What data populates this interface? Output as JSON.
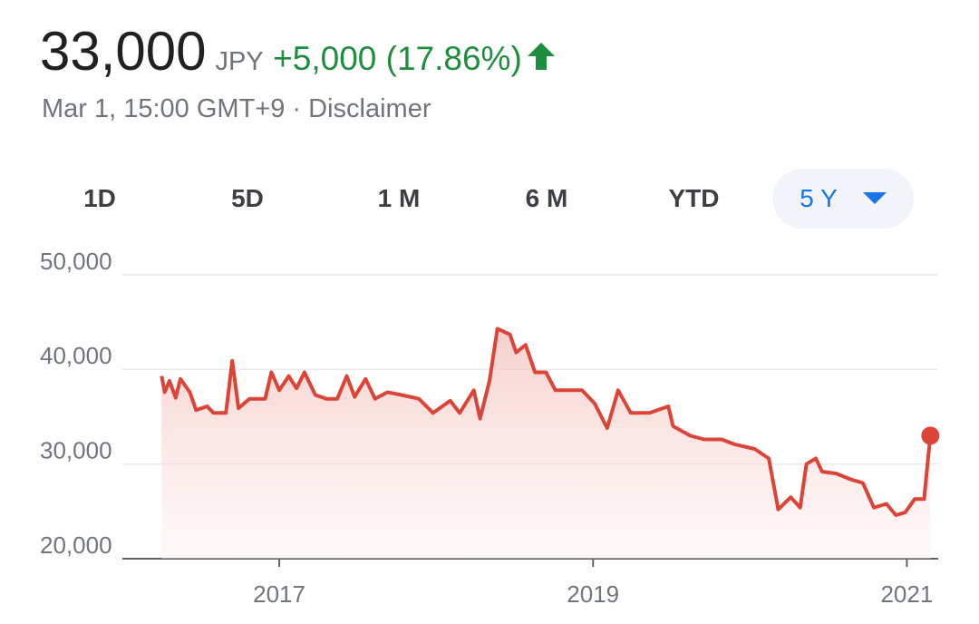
{
  "header": {
    "price": "33,000",
    "currency": "JPY",
    "change": "+5,000 (17.86%)",
    "timestamp": "Mar 1, 15:00 GMT+9 ·",
    "disclaimer": "Disclaimer"
  },
  "tabs": [
    "1D",
    "5D",
    "1 M",
    "6 M",
    "YTD",
    "5 Y"
  ],
  "selected_tab": 5,
  "chart_data": {
    "type": "line",
    "x": [
      2016.25,
      2016.27,
      2016.3,
      2016.34,
      2016.37,
      2016.43,
      2016.47,
      2016.54,
      2016.58,
      2016.66,
      2016.7,
      2016.74,
      2016.81,
      2016.91,
      2016.95,
      2017.0,
      2017.06,
      2017.11,
      2017.16,
      2017.23,
      2017.3,
      2017.37,
      2017.43,
      2017.48,
      2017.55,
      2017.61,
      2017.69,
      2017.78,
      2017.89,
      2017.98,
      2018.09,
      2018.15,
      2018.24,
      2018.28,
      2018.34,
      2018.39,
      2018.47,
      2018.51,
      2018.57,
      2018.63,
      2018.7,
      2018.76,
      2018.84,
      2018.93,
      2019.01,
      2019.09,
      2019.16,
      2019.24,
      2019.36,
      2019.48,
      2019.51,
      2019.62,
      2019.71,
      2019.82,
      2019.9,
      2020.03,
      2020.12,
      2020.18,
      2020.26,
      2020.32,
      2020.36,
      2020.42,
      2020.46,
      2020.55,
      2020.64,
      2020.72,
      2020.79,
      2020.87,
      2020.93,
      2020.99,
      2021.05,
      2021.11,
      2021.15
    ],
    "series": [
      {
        "color": "#db4437",
        "values": [
          39300,
          37600,
          38800,
          37000,
          39000,
          37600,
          35700,
          36100,
          35400,
          35400,
          40900,
          35900,
          36900,
          36900,
          39700,
          37800,
          39300,
          38000,
          39700,
          37300,
          36900,
          36900,
          39300,
          37100,
          39000,
          36900,
          37600,
          37300,
          36900,
          35400,
          36700,
          35400,
          37800,
          34800,
          38800,
          44300,
          43700,
          41800,
          42600,
          39700,
          39700,
          37800,
          37800,
          37800,
          36400,
          33800,
          37800,
          35400,
          35400,
          36100,
          34000,
          33000,
          32600,
          32600,
          32100,
          31600,
          30600,
          25200,
          26500,
          25400,
          30000,
          30600,
          29200,
          29000,
          28400,
          28000,
          25400,
          25800,
          24600,
          24900,
          26300,
          26300,
          33000
        ]
      }
    ],
    "xlim": [
      2016.0,
      2021.2
    ],
    "xticks": [
      2017,
      2019,
      2021
    ],
    "ylim": [
      20000,
      50000
    ],
    "yticks": [
      {
        "value": 20000,
        "label": "20,000"
      },
      {
        "value": 30000,
        "label": "30,000"
      },
      {
        "value": 40000,
        "label": "40,000"
      },
      {
        "value": 50000,
        "label": "50,000"
      }
    ],
    "grid": true
  }
}
